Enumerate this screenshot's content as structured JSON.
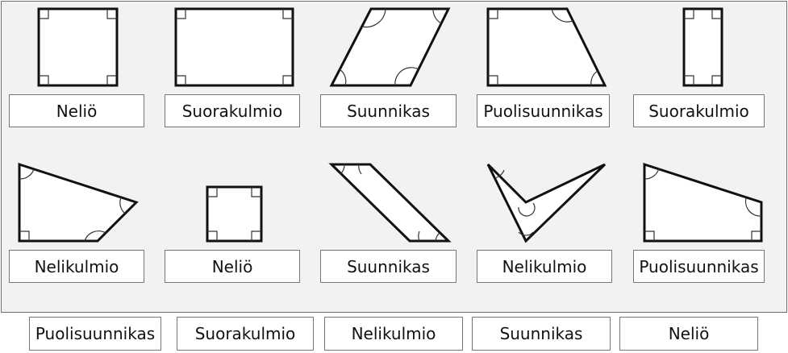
{
  "board": {
    "shapes": [
      {
        "label": "Neliö"
      },
      {
        "label": "Suorakulmio"
      },
      {
        "label": "Suunnikas"
      },
      {
        "label": "Puolisuunnikas"
      },
      {
        "label": "Suorakulmio"
      },
      {
        "label": "Nelikulmio"
      },
      {
        "label": "Neliö"
      },
      {
        "label": "Suunnikas"
      },
      {
        "label": "Nelikulmio"
      },
      {
        "label": "Puolisuunnikas"
      }
    ]
  },
  "tray": {
    "labels": [
      "Puolisuunnikas",
      "Suorakulmio",
      "Nelikulmio",
      "Suunnikas",
      "Neliö"
    ]
  }
}
